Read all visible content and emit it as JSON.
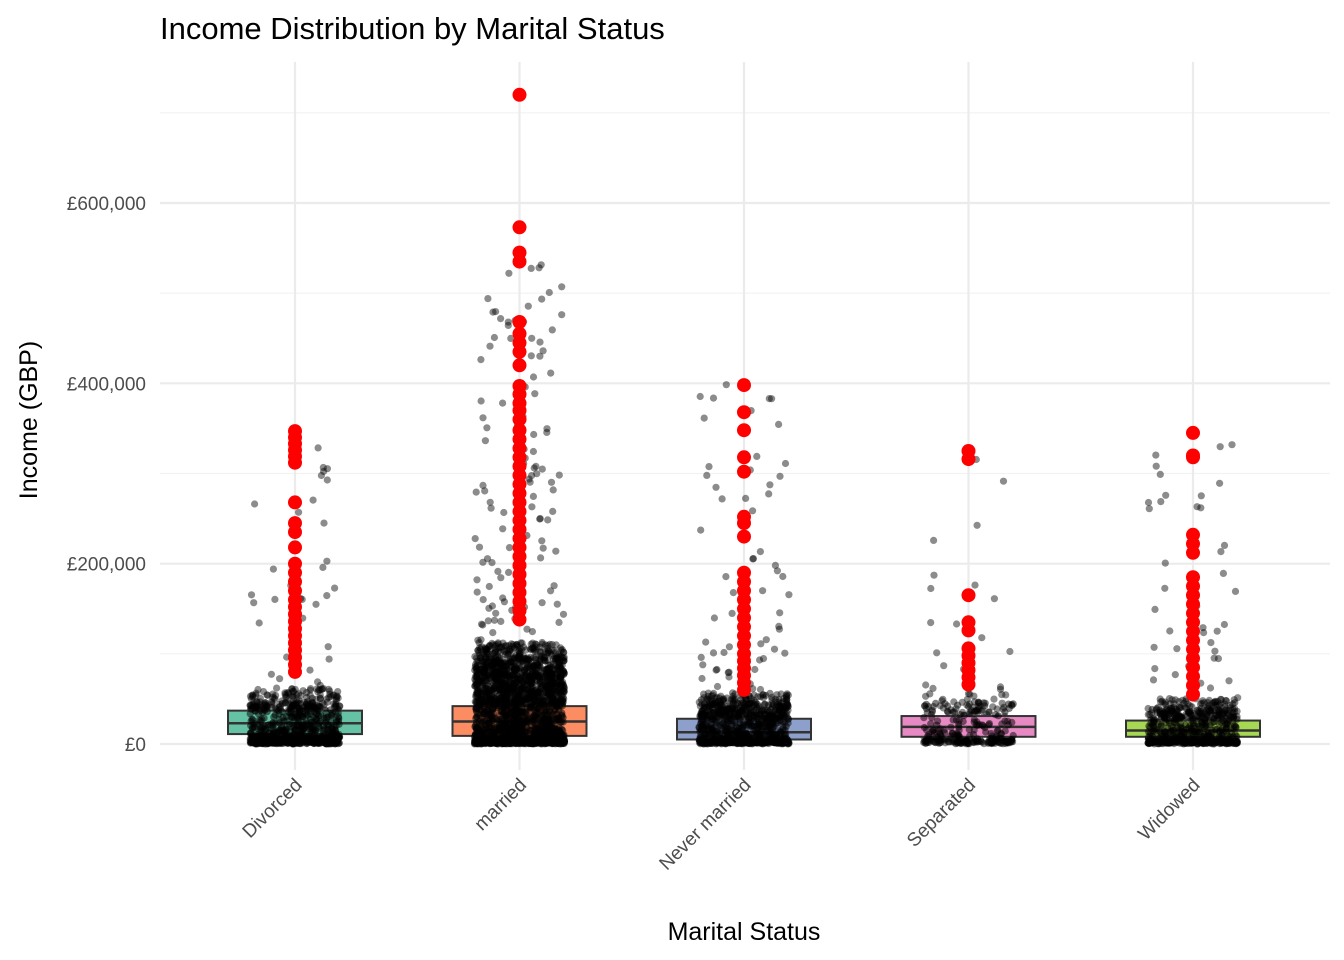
{
  "chart_data": {
    "type": "box",
    "title": "Income Distribution by Marital Status",
    "xlabel": "Marital Status",
    "ylabel": "Income (GBP)",
    "ylim": [
      -40000,
      760000
    ],
    "y_ticks": [
      0,
      200000,
      400000,
      600000
    ],
    "y_tick_labels": [
      "£0",
      "£200,000",
      "£400,000",
      "£600,000"
    ],
    "grid": true,
    "legend": "none",
    "categories": [
      "Divorced",
      "married",
      "Never married",
      "Separated",
      "Widowed"
    ],
    "boxes": [
      {
        "category": "Divorced",
        "q1": 11000,
        "median": 23000,
        "q3": 37000,
        "color": "#66c2a5"
      },
      {
        "category": "married",
        "q1": 9000,
        "median": 25000,
        "q3": 42000,
        "color": "#fc8d62"
      },
      {
        "category": "Never married",
        "q1": 5000,
        "median": 13000,
        "q3": 28000,
        "color": "#8da0cb"
      },
      {
        "category": "Separated",
        "q1": 8000,
        "median": 19000,
        "q3": 31000,
        "color": "#e78ac3"
      },
      {
        "category": "Widowed",
        "q1": 8000,
        "median": 15000,
        "q3": 26000,
        "color": "#a6d854"
      }
    ],
    "outliers": [
      {
        "category": "Divorced",
        "values": [
          347000,
          340000,
          333000,
          326000,
          319000,
          312000,
          268000,
          245000,
          235000,
          218000,
          200000,
          190000,
          180000,
          170000,
          160000,
          152000,
          144000,
          136000,
          128000,
          120000,
          112000,
          104000,
          96000,
          88000,
          80000
        ]
      },
      {
        "category": "married",
        "values": [
          720000,
          573000,
          545000,
          535000,
          468000,
          455000,
          445000,
          435000,
          420000,
          397000,
          388000,
          378000,
          370000,
          360000,
          348000,
          338000,
          328000,
          318000,
          308000,
          298000,
          288000,
          278000,
          268000,
          258000,
          248000,
          238000,
          228000,
          218000,
          208000,
          198000,
          188000,
          178000,
          168000,
          158000,
          148000,
          138000
        ]
      },
      {
        "category": "Never married",
        "values": [
          398000,
          368000,
          348000,
          318000,
          302000,
          252000,
          245000,
          230000,
          190000,
          180000,
          170000,
          160000,
          150000,
          140000,
          130000,
          120000,
          110000,
          100000,
          92000,
          84000,
          76000,
          68000,
          60000
        ]
      },
      {
        "category": "Separated",
        "values": [
          325000,
          316000,
          165000,
          135000,
          126000,
          106000,
          98000,
          90000,
          82000,
          74000,
          66000
        ]
      },
      {
        "category": "Widowed",
        "values": [
          345000,
          320000,
          318000,
          232000,
          222000,
          212000,
          185000,
          175000,
          165000,
          155000,
          145000,
          135000,
          125000,
          115000,
          105000,
          95000,
          85000,
          75000,
          65000,
          55000
        ]
      }
    ],
    "outlier_color": "#ff0000",
    "jitter_color": "#000000"
  }
}
